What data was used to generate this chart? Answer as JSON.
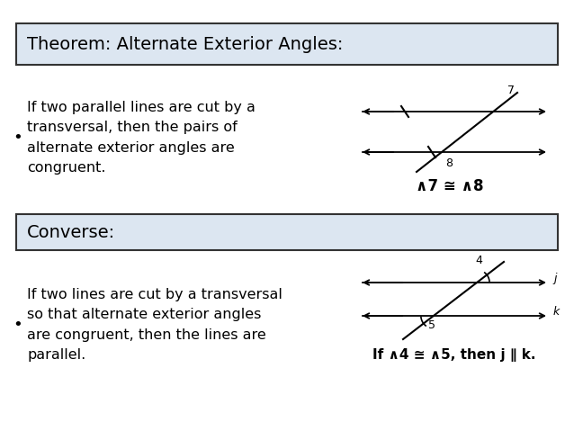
{
  "bg_color": "#ffffff",
  "box_color": "#dce6f1",
  "box_border": "#333333",
  "text_color": "#000000",
  "theorem_title": "Theorem: Alternate Exterior Angles:",
  "theorem_body": "If two parallel lines are cut by a\ntransversal, then the pairs of\nalternate exterior angles are\ncongruent.",
  "converse_title": "Converse:",
  "converse_body": "If two lines are cut by a transversal\nso that alternate exterior angles\nare congruent, then the lines are\nparallel.",
  "theorem_eq": "∧7 ≅ ∧8",
  "converse_eq": "If ∧4 ≅ ∧5, then j ∥ k.",
  "font_size_title": 14,
  "font_size_body": 11.5,
  "font_size_eq": 12,
  "line_color": "#000000"
}
